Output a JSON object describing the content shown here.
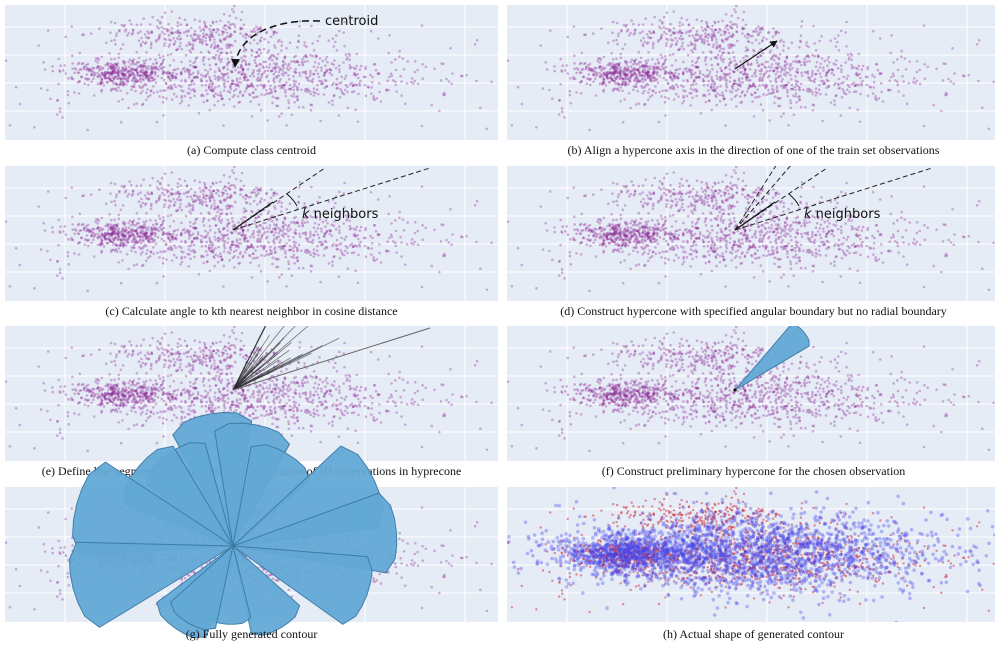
{
  "panels": [
    {
      "caption": "(a) Compute class centroid",
      "annotation": "centroid"
    },
    {
      "caption": "(b) Align a hypercone axis in the direction of one of the train set observations"
    },
    {
      "caption": "(c) Calculate angle to kth nearest neighbor in cosine distance",
      "annotation": {
        "symbol": "k",
        "text": "neighbors"
      }
    },
    {
      "caption": "(d) Construct hypercone with specified angular boundary but no radial boundary",
      "annotation": {
        "symbol": "k",
        "text": "neighbors"
      }
    },
    {
      "caption": "(e) Define line segments showing distance distribution of ID observations in hyprecone"
    },
    {
      "caption": "(f) Construct preliminary hypercone for the chosen observation"
    },
    {
      "caption": "(g) Fully generated contour"
    },
    {
      "caption": "(h) Actual shape of generated contour"
    }
  ]
}
